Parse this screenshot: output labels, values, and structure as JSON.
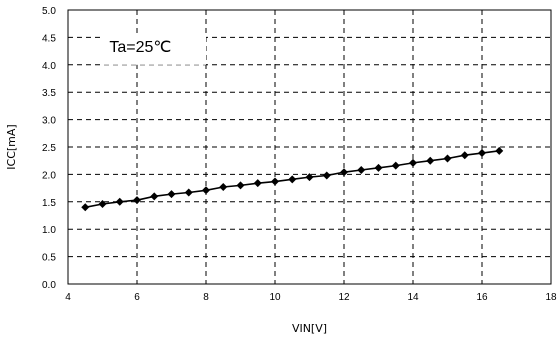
{
  "chart_data": {
    "type": "line",
    "xlabel": "VIN[V]",
    "ylabel": "ICC[mA]",
    "annotation": "Ta=25℃",
    "xlim": [
      4,
      18
    ],
    "ylim": [
      0,
      5
    ],
    "x_ticks": [
      "4",
      "6",
      "8",
      "10",
      "12",
      "14",
      "16",
      "18"
    ],
    "y_ticks": [
      "0.0",
      "0.5",
      "1.0",
      "1.5",
      "2.0",
      "2.5",
      "3.0",
      "3.5",
      "4.0",
      "4.5",
      "5.0"
    ],
    "grid": true,
    "series": [
      {
        "x": [
          4.5,
          5.0,
          5.5,
          6.0,
          6.5,
          7.0,
          7.5,
          8.0,
          8.5,
          9.0,
          9.5,
          10.0,
          10.5,
          11.0,
          11.5,
          12.0,
          12.5,
          13.0,
          13.5,
          14.0,
          14.5,
          15.0,
          15.5,
          16.0,
          16.5
        ],
        "y": [
          1.4,
          1.46,
          1.5,
          1.53,
          1.6,
          1.64,
          1.67,
          1.71,
          1.77,
          1.8,
          1.84,
          1.87,
          1.91,
          1.95,
          1.98,
          2.04,
          2.08,
          2.12,
          2.16,
          2.21,
          2.25,
          2.29,
          2.35,
          2.39,
          2.43
        ]
      }
    ]
  }
}
